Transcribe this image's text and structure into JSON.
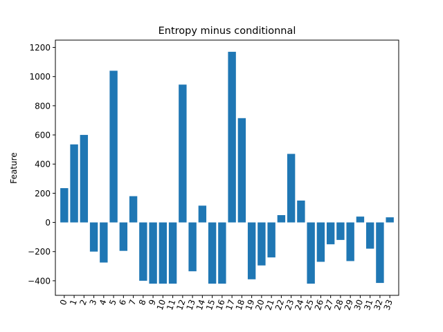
{
  "chart_data": {
    "type": "bar",
    "title": "Entropy minus conditionnal",
    "xlabel": "",
    "ylabel": "Feature",
    "categories": [
      "0",
      "1",
      "2",
      "3",
      "4",
      "5",
      "6",
      "7",
      "8",
      "9",
      "10",
      "11",
      "12",
      "13",
      "14",
      "15",
      "16",
      "17",
      "18",
      "19",
      "20",
      "21",
      "22",
      "23",
      "24",
      "25",
      "26",
      "27",
      "28",
      "29",
      "30",
      "31",
      "32",
      "33"
    ],
    "values": [
      235,
      535,
      600,
      -200,
      -275,
      1040,
      -195,
      180,
      -400,
      -420,
      -420,
      -420,
      945,
      -335,
      115,
      -420,
      -420,
      1170,
      715,
      -390,
      -295,
      -240,
      50,
      470,
      150,
      -420,
      -270,
      -150,
      -120,
      -265,
      40,
      -180,
      -415,
      35
    ],
    "ylim": [
      -500,
      1250
    ],
    "yticks": [
      -400,
      -200,
      0,
      200,
      400,
      600,
      800,
      1000,
      1200
    ],
    "ytick_labels": [
      "−400",
      "−200",
      "0",
      "200",
      "400",
      "600",
      "800",
      "1000",
      "1200"
    ],
    "bar_color": "#1f77b4",
    "grid": false,
    "xtick_rotation": "70 degrees"
  }
}
